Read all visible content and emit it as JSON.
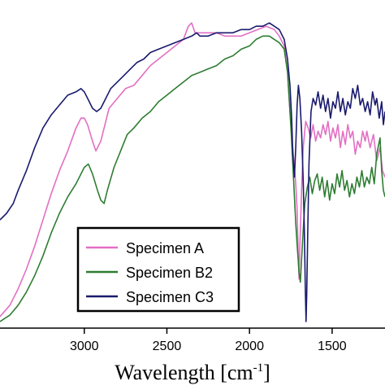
{
  "chart_data": {
    "type": "line",
    "xlabel": "Wavelength [cm",
    "xlabel_sup": "-1",
    "xlabel_close": "]",
    "ylabel": "",
    "x_reversed": true,
    "xlim": [
      3510,
      1180
    ],
    "ylim": [
      0,
      100
    ],
    "xticks": [
      {
        "value": 3000,
        "label": "3000"
      },
      {
        "value": 2500,
        "label": "2500"
      },
      {
        "value": 2000,
        "label": "2000"
      },
      {
        "value": 1500,
        "label": "1500"
      }
    ],
    "grid": false,
    "legend_position": "bottom-left",
    "series": [
      {
        "name": "Specimen A",
        "color": "#e36fc3",
        "points": [
          [
            3510,
            3.5
          ],
          [
            3450,
            7
          ],
          [
            3400,
            12
          ],
          [
            3350,
            18
          ],
          [
            3300,
            25
          ],
          [
            3250,
            33
          ],
          [
            3200,
            41
          ],
          [
            3150,
            48
          ],
          [
            3100,
            54
          ],
          [
            3050,
            61
          ],
          [
            3020,
            64
          ],
          [
            3000,
            64
          ],
          [
            2980,
            62
          ],
          [
            2950,
            57
          ],
          [
            2930,
            54
          ],
          [
            2900,
            57
          ],
          [
            2850,
            67
          ],
          [
            2800,
            70
          ],
          [
            2750,
            73
          ],
          [
            2700,
            74
          ],
          [
            2650,
            77
          ],
          [
            2600,
            80
          ],
          [
            2550,
            82
          ],
          [
            2500,
            84
          ],
          [
            2450,
            86
          ],
          [
            2400,
            88
          ],
          [
            2370,
            92
          ],
          [
            2350,
            93
          ],
          [
            2330,
            90
          ],
          [
            2300,
            90
          ],
          [
            2250,
            90
          ],
          [
            2200,
            90
          ],
          [
            2150,
            89
          ],
          [
            2100,
            89
          ],
          [
            2050,
            89
          ],
          [
            2000,
            90
          ],
          [
            1950,
            91
          ],
          [
            1900,
            92
          ],
          [
            1850,
            91
          ],
          [
            1820,
            89
          ],
          [
            1790,
            86
          ],
          [
            1770,
            78
          ],
          [
            1750,
            62
          ],
          [
            1730,
            50
          ],
          [
            1720,
            44
          ],
          [
            1712,
            36
          ],
          [
            1705,
            22
          ],
          [
            1700,
            15
          ],
          [
            1695,
            25
          ],
          [
            1685,
            42
          ],
          [
            1675,
            55
          ],
          [
            1660,
            63
          ],
          [
            1645,
            61
          ],
          [
            1630,
            58
          ],
          [
            1615,
            62
          ],
          [
            1600,
            57
          ],
          [
            1585,
            60
          ],
          [
            1570,
            58
          ],
          [
            1555,
            62
          ],
          [
            1540,
            59
          ],
          [
            1525,
            63
          ],
          [
            1510,
            57
          ],
          [
            1495,
            61
          ],
          [
            1480,
            58
          ],
          [
            1465,
            62
          ],
          [
            1450,
            55
          ],
          [
            1435,
            60
          ],
          [
            1420,
            56
          ],
          [
            1405,
            62
          ],
          [
            1390,
            58
          ],
          [
            1375,
            60
          ],
          [
            1360,
            53
          ],
          [
            1345,
            57
          ],
          [
            1330,
            55
          ],
          [
            1315,
            60
          ],
          [
            1300,
            57
          ],
          [
            1290,
            60
          ],
          [
            1270,
            55
          ],
          [
            1250,
            59
          ],
          [
            1230,
            51
          ],
          [
            1210,
            55
          ],
          [
            1195,
            48
          ],
          [
            1180,
            46
          ]
        ]
      },
      {
        "name": "Specimen B2",
        "color": "#2e7d32",
        "points": [
          [
            3510,
            2
          ],
          [
            3450,
            4
          ],
          [
            3400,
            7
          ],
          [
            3350,
            11
          ],
          [
            3300,
            16
          ],
          [
            3250,
            22
          ],
          [
            3200,
            29
          ],
          [
            3150,
            35
          ],
          [
            3100,
            40
          ],
          [
            3050,
            44
          ],
          [
            3000,
            49
          ],
          [
            2975,
            50
          ],
          [
            2950,
            47
          ],
          [
            2920,
            42
          ],
          [
            2900,
            39
          ],
          [
            2880,
            38
          ],
          [
            2860,
            42
          ],
          [
            2820,
            49
          ],
          [
            2780,
            54
          ],
          [
            2740,
            59
          ],
          [
            2700,
            61
          ],
          [
            2650,
            64
          ],
          [
            2600,
            66
          ],
          [
            2550,
            69
          ],
          [
            2500,
            71
          ],
          [
            2450,
            73
          ],
          [
            2400,
            75
          ],
          [
            2350,
            77
          ],
          [
            2300,
            78
          ],
          [
            2250,
            79
          ],
          [
            2200,
            80
          ],
          [
            2150,
            82
          ],
          [
            2100,
            83
          ],
          [
            2050,
            85
          ],
          [
            2000,
            86
          ],
          [
            1960,
            88
          ],
          [
            1920,
            89
          ],
          [
            1880,
            89
          ],
          [
            1850,
            88
          ],
          [
            1820,
            87
          ],
          [
            1790,
            85
          ],
          [
            1770,
            78
          ],
          [
            1750,
            62
          ],
          [
            1735,
            47
          ],
          [
            1720,
            32
          ],
          [
            1710,
            24
          ],
          [
            1700,
            17
          ],
          [
            1692,
            14
          ],
          [
            1685,
            21
          ],
          [
            1675,
            30
          ],
          [
            1665,
            38
          ],
          [
            1650,
            43
          ],
          [
            1635,
            46
          ],
          [
            1620,
            41
          ],
          [
            1605,
            45
          ],
          [
            1590,
            47
          ],
          [
            1575,
            42
          ],
          [
            1560,
            46
          ],
          [
            1545,
            40
          ],
          [
            1530,
            45
          ],
          [
            1515,
            39
          ],
          [
            1500,
            44
          ],
          [
            1485,
            41
          ],
          [
            1470,
            47
          ],
          [
            1455,
            43
          ],
          [
            1440,
            48
          ],
          [
            1425,
            42
          ],
          [
            1410,
            45
          ],
          [
            1395,
            40
          ],
          [
            1380,
            44
          ],
          [
            1365,
            41
          ],
          [
            1350,
            46
          ],
          [
            1335,
            43
          ],
          [
            1320,
            48
          ],
          [
            1305,
            43
          ],
          [
            1290,
            46
          ],
          [
            1275,
            44
          ],
          [
            1260,
            49
          ],
          [
            1245,
            44
          ],
          [
            1230,
            53
          ],
          [
            1210,
            58
          ],
          [
            1200,
            48
          ],
          [
            1190,
            42
          ],
          [
            1180,
            40
          ]
        ]
      },
      {
        "name": "Specimen C3",
        "color": "#1a1a6e",
        "points": [
          [
            3510,
            33
          ],
          [
            3470,
            35
          ],
          [
            3430,
            38
          ],
          [
            3400,
            42
          ],
          [
            3350,
            48
          ],
          [
            3300,
            55
          ],
          [
            3250,
            61
          ],
          [
            3200,
            65
          ],
          [
            3150,
            68
          ],
          [
            3100,
            71
          ],
          [
            3050,
            72
          ],
          [
            3020,
            73
          ],
          [
            3000,
            72
          ],
          [
            2970,
            69
          ],
          [
            2950,
            67
          ],
          [
            2925,
            66
          ],
          [
            2900,
            67
          ],
          [
            2870,
            70
          ],
          [
            2840,
            73
          ],
          [
            2800,
            75
          ],
          [
            2760,
            77
          ],
          [
            2720,
            79
          ],
          [
            2680,
            81
          ],
          [
            2640,
            82
          ],
          [
            2600,
            84
          ],
          [
            2550,
            85
          ],
          [
            2500,
            86
          ],
          [
            2450,
            87
          ],
          [
            2400,
            88
          ],
          [
            2350,
            89
          ],
          [
            2320,
            90
          ],
          [
            2300,
            89
          ],
          [
            2250,
            89
          ],
          [
            2200,
            90
          ],
          [
            2150,
            90
          ],
          [
            2100,
            90
          ],
          [
            2050,
            91
          ],
          [
            2000,
            91
          ],
          [
            1960,
            92
          ],
          [
            1920,
            92
          ],
          [
            1880,
            93
          ],
          [
            1850,
            92
          ],
          [
            1820,
            91
          ],
          [
            1790,
            88
          ],
          [
            1770,
            82
          ],
          [
            1755,
            74
          ],
          [
            1745,
            64
          ],
          [
            1738,
            53
          ],
          [
            1728,
            46
          ],
          [
            1720,
            55
          ],
          [
            1712,
            68
          ],
          [
            1704,
            74
          ],
          [
            1695,
            70
          ],
          [
            1685,
            60
          ],
          [
            1675,
            45
          ],
          [
            1668,
            30
          ],
          [
            1662,
            12
          ],
          [
            1658,
            2
          ],
          [
            1654,
            10
          ],
          [
            1648,
            28
          ],
          [
            1640,
            50
          ],
          [
            1628,
            66
          ],
          [
            1615,
            70
          ],
          [
            1600,
            68
          ],
          [
            1585,
            72
          ],
          [
            1570,
            67
          ],
          [
            1555,
            71
          ],
          [
            1540,
            66
          ],
          [
            1525,
            70
          ],
          [
            1510,
            64
          ],
          [
            1495,
            69
          ],
          [
            1480,
            67
          ],
          [
            1465,
            72
          ],
          [
            1450,
            66
          ],
          [
            1435,
            70
          ],
          [
            1420,
            65
          ],
          [
            1405,
            69
          ],
          [
            1390,
            67
          ],
          [
            1375,
            73
          ],
          [
            1360,
            70
          ],
          [
            1345,
            74
          ],
          [
            1330,
            68
          ],
          [
            1315,
            70
          ],
          [
            1300,
            66
          ],
          [
            1285,
            69
          ],
          [
            1270,
            65
          ],
          [
            1255,
            72
          ],
          [
            1240,
            68
          ],
          [
            1230,
            70
          ],
          [
            1215,
            64
          ],
          [
            1200,
            69
          ],
          [
            1190,
            62
          ],
          [
            1180,
            66
          ]
        ]
      }
    ]
  }
}
